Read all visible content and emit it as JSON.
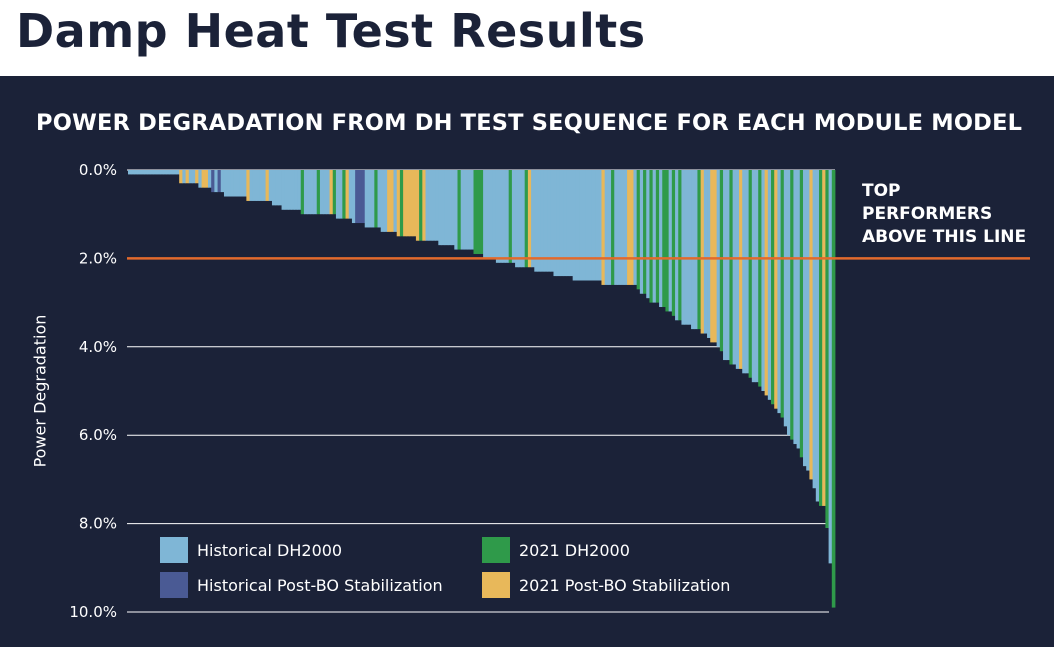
{
  "page": {
    "title": "Damp Heat Test Results"
  },
  "chart_data": {
    "type": "bar",
    "title": "POWER DEGRADATION FROM DH TEST SEQUENCE FOR EACH MODULE MODEL",
    "xlabel": "",
    "ylabel": "Power Degradation",
    "ylim": [
      0,
      10
    ],
    "y_axis_inverted": true,
    "y_ticks": [
      "0.0%",
      "2.0%",
      "4.0%",
      "6.0%",
      "8.0%",
      "10.0%"
    ],
    "y_tick_values": [
      0,
      2,
      4,
      6,
      8,
      10
    ],
    "grid": true,
    "legend_position": "bottom-left",
    "colors": {
      "background": "#1b2238",
      "Historical DH2000": "#7fb6d6",
      "Historical Post-BO Stabilization": "#4a5a94",
      "2021 DH2000": "#2f9a4a",
      "2021 Post-BO Stabilization": "#e8b85a",
      "threshold": "#e26a2c",
      "gridline": "#ffffff"
    },
    "series_names": [
      "Historical DH2000",
      "Historical Post-BO Stabilization",
      "2021 DH2000",
      "2021 Post-BO Stabilization"
    ],
    "category_count": 221,
    "series_index": [
      0,
      0,
      0,
      0,
      0,
      0,
      0,
      0,
      0,
      0,
      0,
      0,
      0,
      0,
      0,
      0,
      3,
      0,
      3,
      0,
      0,
      3,
      0,
      3,
      3,
      0,
      1,
      0,
      1,
      0,
      0,
      0,
      0,
      0,
      0,
      0,
      0,
      3,
      0,
      0,
      0,
      0,
      0,
      3,
      0,
      0,
      0,
      0,
      0,
      0,
      0,
      0,
      0,
      0,
      2,
      0,
      0,
      0,
      0,
      2,
      0,
      0,
      0,
      3,
      2,
      0,
      0,
      2,
      3,
      0,
      0,
      1,
      1,
      1,
      0,
      0,
      0,
      2,
      0,
      0,
      0,
      3,
      3,
      0,
      3,
      2,
      3,
      3,
      3,
      3,
      3,
      2,
      3,
      0,
      0,
      0,
      0,
      0,
      0,
      0,
      0,
      0,
      0,
      2,
      0,
      0,
      0,
      0,
      2,
      2,
      2,
      0,
      0,
      0,
      0,
      0,
      0,
      0,
      0,
      2,
      0,
      0,
      0,
      0,
      2,
      3,
      0,
      0,
      0,
      0,
      0,
      0,
      0,
      0,
      0,
      0,
      0,
      0,
      0,
      0,
      0,
      0,
      0,
      0,
      0,
      0,
      0,
      0,
      3,
      0,
      0,
      2,
      0,
      0,
      0,
      0,
      3,
      3,
      0,
      2,
      0,
      2,
      0,
      2,
      0,
      2,
      0,
      2,
      2,
      0,
      2,
      0,
      2,
      0,
      0,
      0,
      0,
      0,
      2,
      3,
      0,
      0,
      3,
      3,
      0,
      2,
      0,
      0,
      2,
      0,
      0,
      3,
      0,
      0,
      2,
      0,
      0,
      2,
      0,
      3,
      0,
      2,
      3,
      0,
      2,
      0,
      0,
      2,
      0,
      0,
      2,
      0,
      0,
      3,
      0,
      0,
      2,
      3,
      2,
      0,
      2
    ],
    "values": [
      0.1,
      0.1,
      0.1,
      0.1,
      0.1,
      0.1,
      0.1,
      0.1,
      0.1,
      0.1,
      0.1,
      0.1,
      0.1,
      0.1,
      0.1,
      0.1,
      0.3,
      0.3,
      0.3,
      0.3,
      0.3,
      0.3,
      0.4,
      0.4,
      0.4,
      0.4,
      0.5,
      0.5,
      0.5,
      0.5,
      0.6,
      0.6,
      0.6,
      0.6,
      0.6,
      0.6,
      0.6,
      0.7,
      0.7,
      0.7,
      0.7,
      0.7,
      0.7,
      0.7,
      0.7,
      0.8,
      0.8,
      0.8,
      0.9,
      0.9,
      0.9,
      0.9,
      0.9,
      0.9,
      1,
      1,
      1,
      1,
      1,
      1,
      1,
      1,
      1,
      1,
      1,
      1.1,
      1.1,
      1.1,
      1.1,
      1.1,
      1.2,
      1.2,
      1.2,
      1.2,
      1.3,
      1.3,
      1.3,
      1.3,
      1.3,
      1.4,
      1.4,
      1.4,
      1.4,
      1.4,
      1.5,
      1.5,
      1.5,
      1.5,
      1.5,
      1.5,
      1.6,
      1.6,
      1.6,
      1.6,
      1.6,
      1.6,
      1.6,
      1.7,
      1.7,
      1.7,
      1.7,
      1.7,
      1.8,
      1.8,
      1.8,
      1.8,
      1.8,
      1.8,
      1.9,
      1.9,
      1.9,
      2,
      2,
      2,
      2,
      2.1,
      2.1,
      2.1,
      2.1,
      2.1,
      2.1,
      2.2,
      2.2,
      2.2,
      2.2,
      2.2,
      2.2,
      2.3,
      2.3,
      2.3,
      2.3,
      2.3,
      2.3,
      2.4,
      2.4,
      2.4,
      2.4,
      2.4,
      2.4,
      2.5,
      2.5,
      2.5,
      2.5,
      2.5,
      2.5,
      2.5,
      2.5,
      2.5,
      2.6,
      2.6,
      2.6,
      2.6,
      2.6,
      2.6,
      2.6,
      2.6,
      2.6,
      2.6,
      2.6,
      2.7,
      2.8,
      2.8,
      2.9,
      3,
      3,
      3,
      3.1,
      3.1,
      3.2,
      3.2,
      3.3,
      3.4,
      3.4,
      3.5,
      3.5,
      3.5,
      3.6,
      3.6,
      3.6,
      3.7,
      3.7,
      3.8,
      3.9,
      3.9,
      4,
      4.1,
      4.3,
      4.3,
      4.4,
      4.4,
      4.5,
      4.5,
      4.6,
      4.6,
      4.7,
      4.8,
      4.8,
      4.9,
      5,
      5.1,
      5.2,
      5.3,
      5.4,
      5.5,
      5.6,
      5.8,
      6,
      6.1,
      6.2,
      6.3,
      6.5,
      6.7,
      6.8,
      7,
      7.2,
      7.5,
      7.6,
      7.6,
      8.1,
      8.9,
      9.9
    ]
  },
  "annotation": {
    "threshold_value": 2.0,
    "lines": [
      "TOP",
      "PERFORMERS",
      "ABOVE THIS LINE"
    ]
  },
  "legend": {
    "items": [
      {
        "label": "Historical DH2000",
        "color": "#7fb6d6"
      },
      {
        "label": "2021 DH2000",
        "color": "#2f9a4a"
      },
      {
        "label": "Historical Post-BO Stabilization",
        "color": "#4a5a94"
      },
      {
        "label": "2021 Post-BO Stabilization",
        "color": "#e8b85a"
      }
    ]
  }
}
